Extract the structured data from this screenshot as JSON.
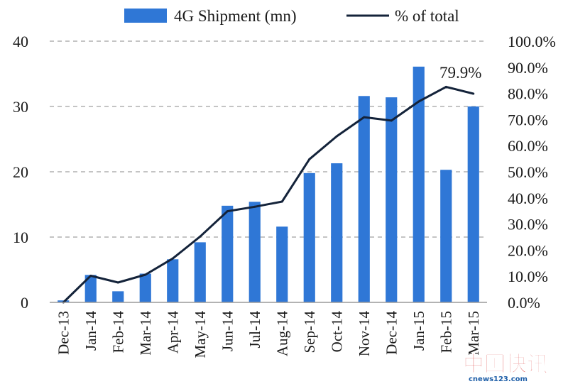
{
  "chart_data": {
    "type": "bar+line",
    "categories": [
      "Dec-13",
      "Jan-14",
      "Feb-14",
      "Mar-14",
      "Apr-14",
      "May-14",
      "Jun-14",
      "Jul-14",
      "Aug-14",
      "Sep-14",
      "Oct-14",
      "Nov-14",
      "Dec-14",
      "Jan-15",
      "Feb-15",
      "Mar-15"
    ],
    "series": [
      {
        "name": "4G Shipment (mn)",
        "type": "bar",
        "axis": "left",
        "color": "#2f77d6",
        "values": [
          0.3,
          4.2,
          1.7,
          4.4,
          6.6,
          9.2,
          14.8,
          15.4,
          11.6,
          19.8,
          21.3,
          31.6,
          31.4,
          36.1,
          20.3,
          30.0
        ]
      },
      {
        "name": "% of total",
        "type": "line",
        "axis": "right",
        "color": "#14233a",
        "values": [
          0.0,
          10.2,
          7.6,
          10.6,
          16.8,
          25.2,
          34.9,
          36.6,
          38.6,
          54.8,
          63.6,
          70.9,
          69.6,
          76.9,
          82.5,
          79.9
        ]
      }
    ],
    "y_left": {
      "ylim": [
        0,
        40
      ],
      "ticks": [
        "0",
        "10",
        "20",
        "30",
        "40"
      ]
    },
    "y_right": {
      "ylim": [
        0,
        100
      ],
      "ticks": [
        "0.0%",
        "10.0%",
        "20.0%",
        "30.0%",
        "40.0%",
        "50.0%",
        "60.0%",
        "70.0%",
        "80.0%",
        "90.0%",
        "100.0%"
      ]
    },
    "grid": "horizontal-dashed",
    "legend_position": "top",
    "annotation": {
      "text": "79.9%",
      "category": "Mar-15"
    }
  },
  "watermark": {
    "text": "中国快讯",
    "subtext": "cnews123.com"
  }
}
